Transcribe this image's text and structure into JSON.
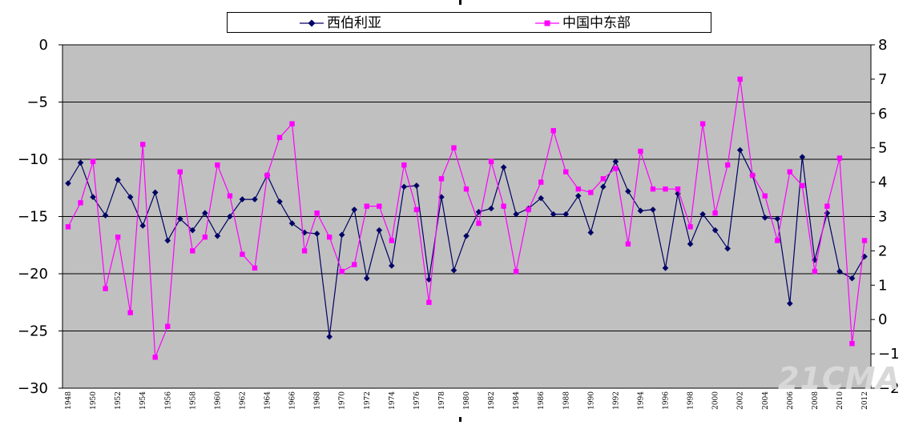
{
  "chart_data": {
    "type": "line",
    "x": [
      1948,
      1949,
      1950,
      1951,
      1952,
      1953,
      1954,
      1955,
      1956,
      1957,
      1958,
      1959,
      1960,
      1961,
      1962,
      1963,
      1964,
      1965,
      1966,
      1967,
      1968,
      1969,
      1970,
      1971,
      1972,
      1973,
      1974,
      1975,
      1976,
      1977,
      1978,
      1979,
      1980,
      1981,
      1982,
      1983,
      1984,
      1985,
      1986,
      1987,
      1988,
      1989,
      1990,
      1991,
      1992,
      1993,
      1994,
      1995,
      1996,
      1997,
      1998,
      1999,
      2000,
      2001,
      2002,
      2003,
      2004,
      2005,
      2006,
      2007,
      2008,
      2009,
      2010,
      2011,
      2012
    ],
    "x_tick_labels": [
      "1948",
      "1950",
      "1952",
      "1954",
      "1956",
      "1958",
      "1960",
      "1962",
      "1964",
      "1966",
      "1968",
      "1970",
      "1972",
      "1974",
      "1976",
      "1978",
      "1980",
      "1982",
      "1984",
      "1986",
      "1988",
      "1990",
      "1992",
      "1994",
      "1996",
      "1998",
      "2000",
      "2002",
      "2004",
      "2006",
      "2008",
      "2010",
      "2012"
    ],
    "series": [
      {
        "name": "西伯利亚",
        "axis": "left",
        "color": "#000066",
        "marker": "diamond",
        "values": [
          -12.1,
          -10.3,
          -13.3,
          -14.9,
          -11.8,
          -13.3,
          -15.8,
          -12.9,
          -17.1,
          -15.2,
          -16.2,
          -14.7,
          -16.7,
          -15.0,
          -13.5,
          -13.5,
          -11.4,
          -13.7,
          -15.6,
          -16.4,
          -16.5,
          -25.5,
          -16.6,
          -14.4,
          -20.4,
          -16.2,
          -19.3,
          -12.4,
          -12.3,
          -20.5,
          -13.3,
          -19.7,
          -16.7,
          -14.6,
          -14.3,
          -10.7,
          -14.8,
          -14.3,
          -13.4,
          -14.8,
          -14.8,
          -13.2,
          -16.4,
          -12.4,
          -10.2,
          -12.8,
          -14.5,
          -14.4,
          -19.5,
          -13.0,
          -17.4,
          -14.8,
          -16.2,
          -17.8,
          -9.2,
          -11.4,
          -15.1,
          -15.2,
          -22.6,
          -9.8,
          -18.8,
          -14.7,
          -19.8,
          -20.4,
          -18.5
        ]
      },
      {
        "name": "中国中东部",
        "axis": "right",
        "color": "#ff00ff",
        "marker": "square",
        "values": [
          2.7,
          3.4,
          4.6,
          0.9,
          2.4,
          0.2,
          5.1,
          -1.1,
          -0.2,
          4.3,
          2.0,
          2.4,
          4.5,
          3.6,
          1.9,
          1.5,
          4.2,
          5.3,
          5.7,
          2.0,
          3.1,
          2.4,
          1.4,
          1.6,
          3.3,
          3.3,
          2.3,
          4.5,
          3.2,
          0.5,
          4.1,
          5.0,
          3.8,
          2.8,
          4.6,
          3.3,
          1.4,
          3.2,
          4.0,
          5.5,
          4.3,
          3.8,
          3.7,
          4.1,
          4.4,
          2.2,
          4.9,
          3.8,
          3.8,
          3.8,
          2.7,
          5.7,
          3.1,
          4.5,
          7.0,
          4.2,
          3.6,
          2.3,
          4.3,
          3.9,
          1.4,
          3.3,
          4.7,
          -0.7,
          2.3
        ]
      }
    ],
    "y_left": {
      "ylim": [
        -30,
        0
      ],
      "ticks": [
        0,
        -5,
        -10,
        -15,
        -20,
        -25,
        -30
      ],
      "tick_labels": [
        "0",
        "−5",
        "−10",
        "−15",
        "−20",
        "−25",
        "−30"
      ]
    },
    "y_right": {
      "ylim": [
        -2,
        8
      ],
      "ticks": [
        8,
        7,
        6,
        5,
        4,
        3,
        2,
        1,
        0,
        -1,
        -2
      ],
      "tick_labels": [
        "8",
        "7",
        "6",
        "5",
        "4",
        "3",
        "2",
        "1",
        "0",
        "−1",
        "−2"
      ]
    },
    "grid": "horizontal",
    "legend_position": "top",
    "plot_background": "#c0c0c0"
  },
  "legend": {
    "items": [
      {
        "label": "西伯利亚",
        "color": "#000066",
        "marker": "diamond"
      },
      {
        "label": "中国中东部",
        "color": "#ff00ff",
        "marker": "square"
      }
    ]
  },
  "watermark": "21CMA"
}
